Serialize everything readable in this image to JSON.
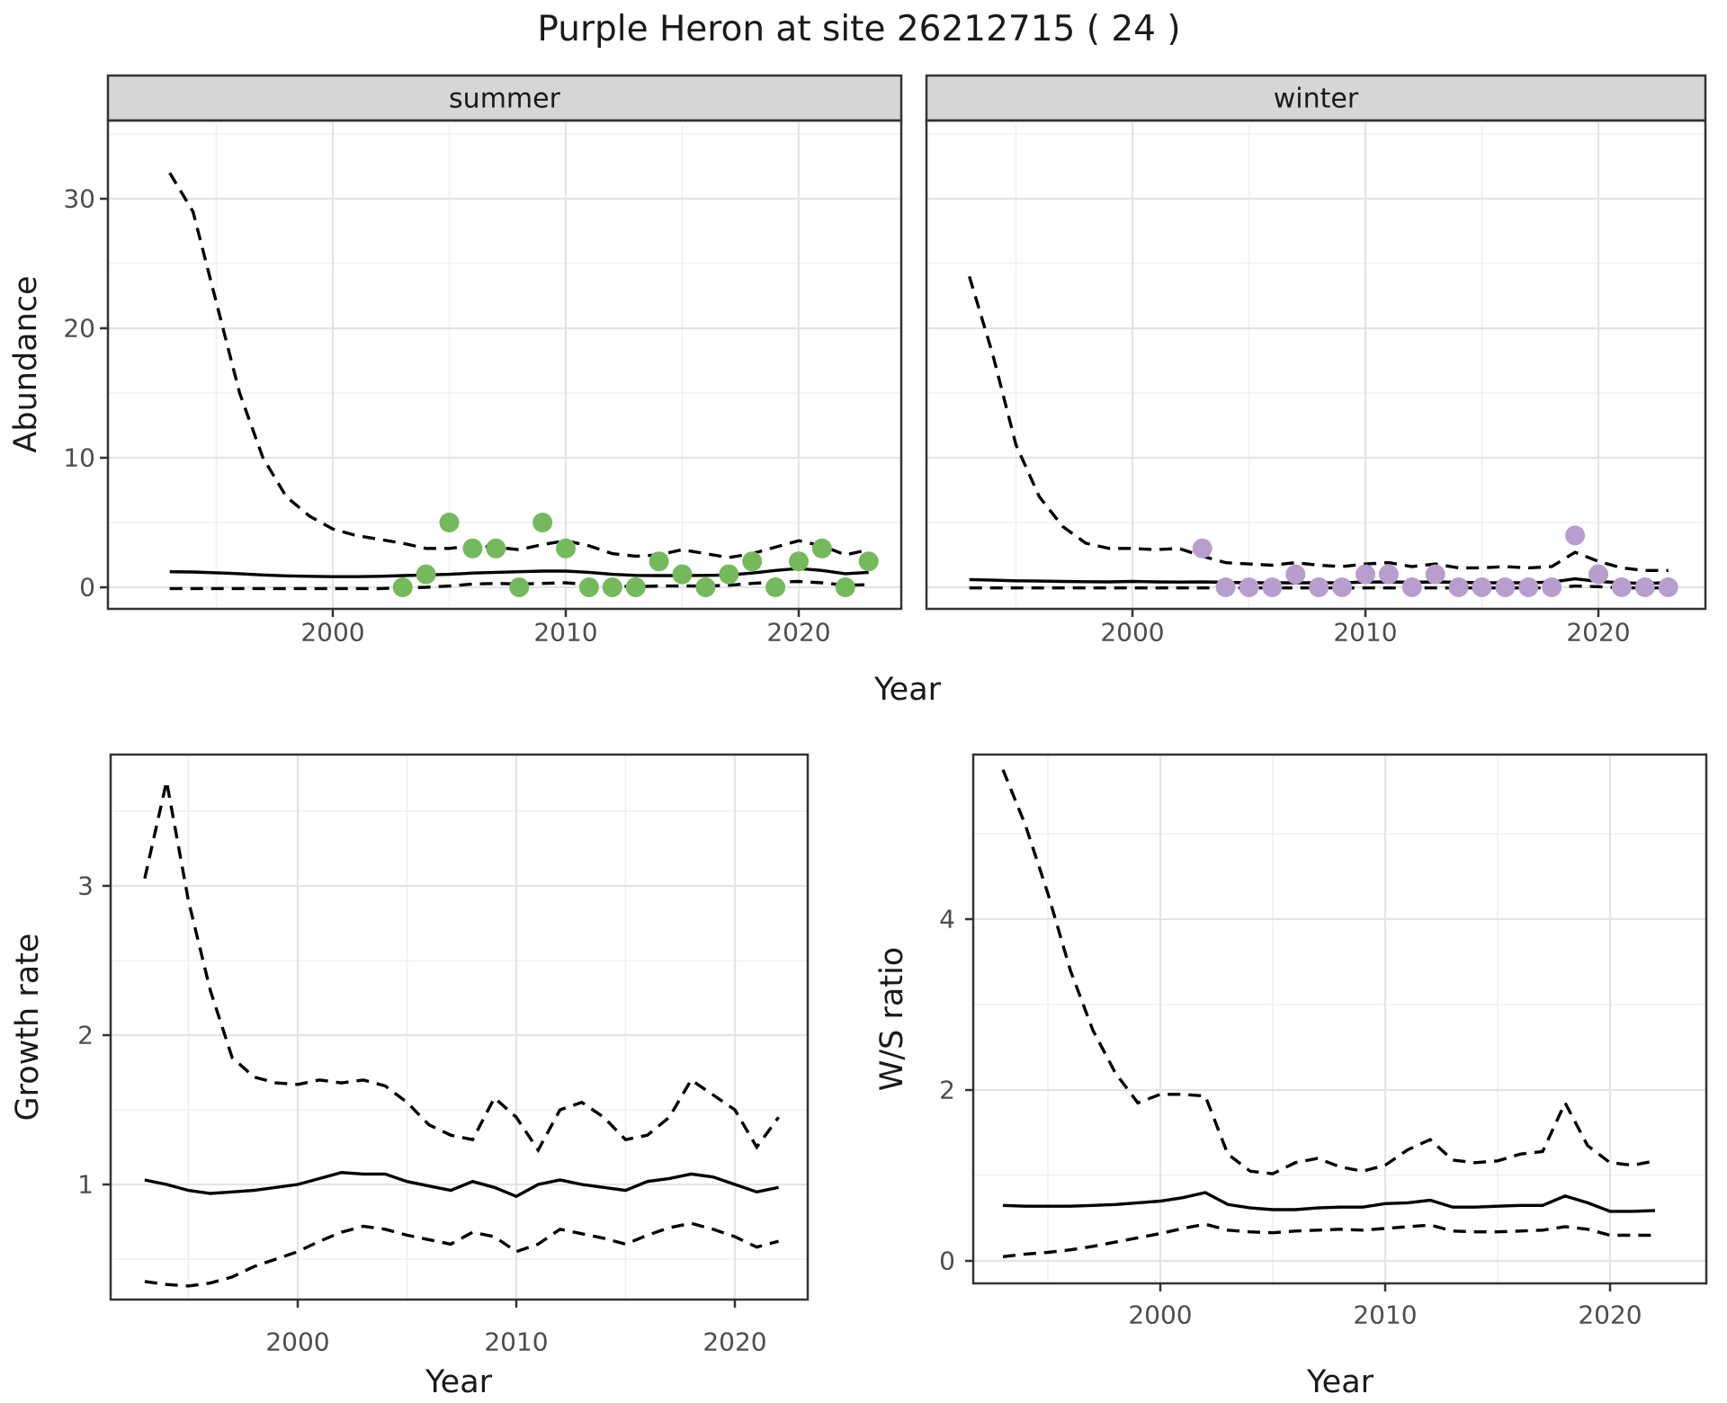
{
  "title": "Purple Heron at site 26212715 ( 24 )",
  "labels": {
    "abundance_y": "Abundance",
    "year_top": "Year",
    "growth_y": "Growth rate",
    "year_bottom_left": "Year",
    "ws_y": "W/S ratio",
    "year_bottom_right": "Year",
    "facet_summer": "summer",
    "facet_winter": "winter"
  },
  "colors": {
    "summer_points": "#74b95c",
    "winter_points": "#b89dcf",
    "line": "#000000",
    "strip_bg": "#d6d6d6",
    "panel_border": "#333333",
    "grid_major": "#e4e4e4",
    "grid_minor": "#f0f0f0",
    "tick_text": "#4d4d4d",
    "title_text": "#1a1a1a"
  },
  "chart_data": [
    {
      "id": "abundance-summer",
      "type": "scatter",
      "facet": "summer",
      "title": "Purple Heron at site 26212715 ( 24 )",
      "xlabel": "Year",
      "ylabel": "Abundance",
      "xlim": [
        1990.3,
        2024.4
      ],
      "ylim": [
        -1.6,
        36
      ],
      "x_ticks": [
        2000,
        2010,
        2020
      ],
      "x_minor": [
        1995,
        2005,
        2015
      ],
      "y_ticks": [
        0,
        10,
        20,
        30
      ],
      "y_minor": [
        5,
        15,
        25,
        35
      ],
      "point_color": "#74b95c",
      "point_years": [
        2003,
        2004,
        2005,
        2006,
        2007,
        2008,
        2009,
        2010,
        2011,
        2012,
        2013,
        2014,
        2015,
        2016,
        2017,
        2018,
        2019,
        2020,
        2021,
        2022,
        2023
      ],
      "point_values": [
        0,
        1,
        5,
        3,
        3,
        0,
        5,
        3,
        0,
        0,
        0,
        2,
        1,
        0,
        1,
        2,
        0,
        2,
        3,
        0,
        2
      ],
      "fit_years": [
        1993,
        1994,
        1995,
        1996,
        1997,
        1998,
        1999,
        2000,
        2001,
        2002,
        2003,
        2004,
        2005,
        2006,
        2007,
        2008,
        2009,
        2010,
        2011,
        2012,
        2013,
        2014,
        2015,
        2016,
        2017,
        2018,
        2019,
        2020,
        2021,
        2022,
        2023
      ],
      "fit_mean": [
        1.2,
        1.18,
        1.12,
        1.05,
        0.95,
        0.88,
        0.85,
        0.82,
        0.82,
        0.85,
        0.9,
        0.95,
        1.0,
        1.1,
        1.15,
        1.2,
        1.25,
        1.25,
        1.15,
        1.0,
        0.92,
        0.9,
        0.9,
        0.92,
        0.95,
        1.1,
        1.3,
        1.45,
        1.3,
        1.05,
        1.15
      ],
      "ci_upper": [
        32,
        29,
        22,
        15,
        10,
        7,
        5.5,
        4.5,
        4.0,
        3.7,
        3.4,
        3.0,
        3.0,
        3.2,
        3.1,
        2.9,
        3.3,
        3.6,
        3.2,
        2.6,
        2.4,
        2.5,
        2.9,
        2.6,
        2.3,
        2.6,
        3.1,
        3.6,
        3.2,
        2.5,
        2.9
      ],
      "ci_lower": [
        -0.1,
        -0.1,
        -0.1,
        -0.1,
        -0.1,
        -0.1,
        -0.1,
        -0.1,
        -0.1,
        -0.1,
        -0.05,
        0.0,
        0.1,
        0.25,
        0.3,
        0.25,
        0.3,
        0.35,
        0.2,
        0.1,
        0.05,
        0.1,
        0.1,
        0.1,
        0.15,
        0.3,
        0.4,
        0.45,
        0.35,
        0.15,
        0.2
      ]
    },
    {
      "id": "abundance-winter",
      "type": "scatter",
      "facet": "winter",
      "xlabel": "Year",
      "ylabel": "Abundance",
      "xlim": [
        1991.1,
        2024.6
      ],
      "ylim": [
        -1.6,
        36
      ],
      "x_ticks": [
        2000,
        2010,
        2020
      ],
      "x_minor": [
        1995,
        2005,
        2015
      ],
      "y_ticks": [
        0,
        10,
        20,
        30
      ],
      "y_minor": [
        5,
        15,
        25,
        35
      ],
      "point_color": "#b89dcf",
      "point_years": [
        2003,
        2004,
        2005,
        2006,
        2007,
        2008,
        2009,
        2010,
        2011,
        2012,
        2013,
        2014,
        2015,
        2016,
        2017,
        2018,
        2019,
        2020,
        2021,
        2022,
        2023
      ],
      "point_values": [
        3,
        0,
        0,
        0,
        1,
        0,
        0,
        1,
        1,
        0,
        1,
        0,
        0,
        0,
        0,
        0,
        4,
        1,
        0,
        0,
        0
      ],
      "fit_years": [
        1993,
        1994,
        1995,
        1996,
        1997,
        1998,
        1999,
        2000,
        2001,
        2002,
        2003,
        2004,
        2005,
        2006,
        2007,
        2008,
        2009,
        2010,
        2011,
        2012,
        2013,
        2014,
        2015,
        2016,
        2017,
        2018,
        2019,
        2020,
        2021,
        2022,
        2023
      ],
      "fit_mean": [
        0.6,
        0.55,
        0.5,
        0.48,
        0.45,
        0.43,
        0.42,
        0.45,
        0.42,
        0.4,
        0.42,
        0.38,
        0.35,
        0.35,
        0.35,
        0.35,
        0.35,
        0.4,
        0.42,
        0.38,
        0.42,
        0.38,
        0.35,
        0.35,
        0.35,
        0.4,
        0.65,
        0.45,
        0.35,
        0.3,
        0.35
      ],
      "ci_upper": [
        24,
        18,
        11,
        7,
        4.7,
        3.4,
        3.0,
        3.0,
        2.9,
        3.0,
        2.4,
        1.9,
        1.8,
        1.7,
        1.9,
        1.7,
        1.6,
        1.8,
        1.9,
        1.6,
        1.8,
        1.5,
        1.5,
        1.6,
        1.5,
        1.6,
        2.7,
        2.0,
        1.5,
        1.3,
        1.3
      ],
      "ci_lower": [
        -0.05,
        -0.05,
        -0.05,
        -0.05,
        -0.05,
        -0.05,
        -0.05,
        -0.05,
        -0.05,
        -0.05,
        -0.05,
        -0.05,
        -0.05,
        -0.05,
        -0.05,
        -0.05,
        -0.05,
        -0.05,
        -0.05,
        -0.05,
        -0.05,
        -0.05,
        -0.05,
        -0.05,
        -0.05,
        -0.05,
        0.1,
        0.05,
        -0.05,
        -0.05,
        -0.05
      ]
    },
    {
      "id": "growth-rate",
      "type": "line",
      "xlabel": "Year",
      "ylabel": "Growth rate",
      "xlim": [
        1991.5,
        2023.4
      ],
      "ylim": [
        0.23,
        3.88
      ],
      "x_ticks": [
        2000,
        2010,
        2020
      ],
      "x_minor": [
        1995,
        2005,
        2015
      ],
      "y_ticks": [
        1,
        2,
        3
      ],
      "y_minor": [
        0.5,
        1.5,
        2.5,
        3.5
      ],
      "fit_years": [
        1993,
        1994,
        1995,
        1996,
        1997,
        1998,
        1999,
        2000,
        2001,
        2002,
        2003,
        2004,
        2005,
        2006,
        2007,
        2008,
        2009,
        2010,
        2011,
        2012,
        2013,
        2014,
        2015,
        2016,
        2017,
        2018,
        2019,
        2020,
        2021,
        2022
      ],
      "fit_mean": [
        1.03,
        1.0,
        0.96,
        0.94,
        0.95,
        0.96,
        0.98,
        1.0,
        1.04,
        1.08,
        1.07,
        1.07,
        1.02,
        0.99,
        0.96,
        1.02,
        0.98,
        0.92,
        1.0,
        1.03,
        1.0,
        0.98,
        0.96,
        1.02,
        1.04,
        1.07,
        1.05,
        1.0,
        0.95,
        0.98
      ],
      "ci_upper": [
        3.05,
        3.7,
        2.9,
        2.3,
        1.85,
        1.72,
        1.68,
        1.67,
        1.7,
        1.68,
        1.7,
        1.66,
        1.55,
        1.4,
        1.33,
        1.3,
        1.58,
        1.45,
        1.23,
        1.5,
        1.55,
        1.45,
        1.3,
        1.33,
        1.45,
        1.7,
        1.6,
        1.5,
        1.25,
        1.45
      ],
      "ci_lower": [
        0.35,
        0.33,
        0.32,
        0.34,
        0.38,
        0.45,
        0.5,
        0.55,
        0.62,
        0.68,
        0.72,
        0.7,
        0.66,
        0.63,
        0.6,
        0.68,
        0.65,
        0.55,
        0.6,
        0.7,
        0.67,
        0.64,
        0.6,
        0.66,
        0.71,
        0.74,
        0.7,
        0.65,
        0.58,
        0.62
      ]
    },
    {
      "id": "ws-ratio",
      "type": "line",
      "xlabel": "Year",
      "ylabel": "W/S ratio",
      "xlim": [
        1991.7,
        2024.3
      ],
      "ylim": [
        -0.26,
        5.93
      ],
      "x_ticks": [
        2000,
        2010,
        2020
      ],
      "x_minor": [
        1995,
        2005,
        2015
      ],
      "y_ticks": [
        0,
        2,
        4
      ],
      "y_minor": [
        1,
        3,
        5
      ],
      "fit_years": [
        1993,
        1994,
        1995,
        1996,
        1997,
        1998,
        1999,
        2000,
        2001,
        2002,
        2003,
        2004,
        2005,
        2006,
        2007,
        2008,
        2009,
        2010,
        2011,
        2012,
        2013,
        2014,
        2015,
        2016,
        2017,
        2018,
        2019,
        2020,
        2021,
        2022
      ],
      "fit_mean": [
        0.65,
        0.64,
        0.64,
        0.64,
        0.65,
        0.66,
        0.68,
        0.7,
        0.74,
        0.8,
        0.66,
        0.62,
        0.6,
        0.6,
        0.62,
        0.63,
        0.63,
        0.67,
        0.68,
        0.71,
        0.63,
        0.63,
        0.64,
        0.65,
        0.65,
        0.76,
        0.68,
        0.58,
        0.58,
        0.59
      ],
      "ci_upper": [
        5.75,
        5.1,
        4.3,
        3.4,
        2.7,
        2.2,
        1.85,
        1.95,
        1.95,
        1.93,
        1.25,
        1.05,
        1.02,
        1.15,
        1.2,
        1.1,
        1.05,
        1.12,
        1.3,
        1.42,
        1.18,
        1.15,
        1.17,
        1.25,
        1.28,
        1.85,
        1.35,
        1.15,
        1.12,
        1.17
      ],
      "ci_lower": [
        0.05,
        0.08,
        0.1,
        0.13,
        0.17,
        0.22,
        0.27,
        0.32,
        0.38,
        0.43,
        0.36,
        0.34,
        0.33,
        0.35,
        0.36,
        0.37,
        0.36,
        0.38,
        0.4,
        0.42,
        0.35,
        0.34,
        0.34,
        0.35,
        0.36,
        0.4,
        0.37,
        0.3,
        0.3,
        0.3
      ]
    }
  ]
}
